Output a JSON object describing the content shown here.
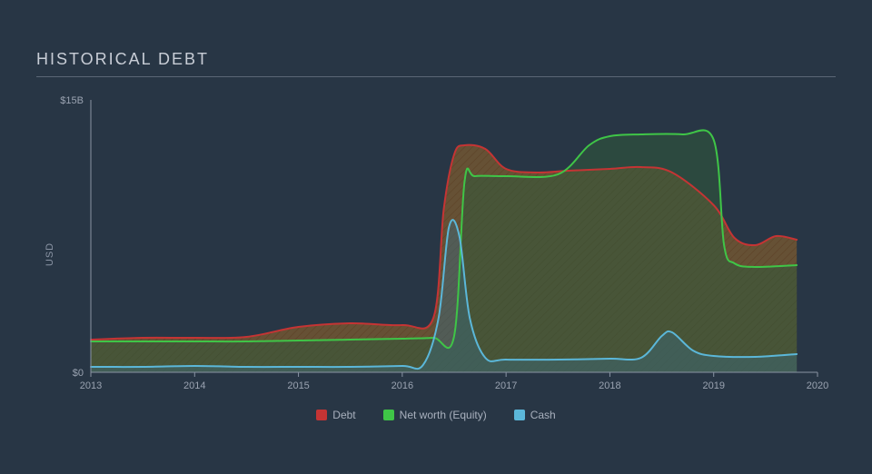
{
  "title": "HISTORICAL DEBT",
  "chart": {
    "type": "area",
    "background_color": "#283645",
    "grid_color": "#3a4756",
    "axis_color": "#8a94a4",
    "tick_font_size": 11,
    "tick_color": "#9aa3b1",
    "title_font_size": 18,
    "title_color": "#c8cdd6",
    "title_letter_spacing": 2,
    "ylabel": "USD",
    "ylabel_font_size": 11,
    "ylabel_color": "#8a94a4",
    "x_ticks": [
      2013,
      2014,
      2015,
      2016,
      2017,
      2018,
      2019,
      2020
    ],
    "xlim": [
      2013,
      2020
    ],
    "y_ticks": [
      {
        "v": 0,
        "label": "$0"
      },
      {
        "v": 15,
        "label": "$15B"
      }
    ],
    "ylim": [
      0,
      15
    ],
    "series": [
      {
        "name": "Debt",
        "legend_label": "Debt",
        "stroke": "#c53434",
        "fill": "#7a5930",
        "fill_opacity": 0.75,
        "stroke_width": 2,
        "hatch": true,
        "hatch_color": "#5c4226",
        "points": [
          [
            2013,
            1.8
          ],
          [
            2013.5,
            1.9
          ],
          [
            2014,
            1.9
          ],
          [
            2014.5,
            1.95
          ],
          [
            2015,
            2.5
          ],
          [
            2015.5,
            2.7
          ],
          [
            2016,
            2.6
          ],
          [
            2016.3,
            3.0
          ],
          [
            2016.4,
            9.0
          ],
          [
            2016.5,
            12.0
          ],
          [
            2016.6,
            12.5
          ],
          [
            2016.8,
            12.3
          ],
          [
            2017,
            11.2
          ],
          [
            2017.3,
            11.0
          ],
          [
            2017.6,
            11.1
          ],
          [
            2018,
            11.2
          ],
          [
            2018.3,
            11.3
          ],
          [
            2018.6,
            11.0
          ],
          [
            2019,
            9.2
          ],
          [
            2019.2,
            7.4
          ],
          [
            2019.4,
            7.0
          ],
          [
            2019.6,
            7.5
          ],
          [
            2019.8,
            7.3
          ]
        ]
      },
      {
        "name": "Net worth (Equity)",
        "legend_label": "Net worth (Equity)",
        "stroke": "#3fc547",
        "fill": "#2f5a3a",
        "fill_opacity": 0.55,
        "stroke_width": 2,
        "hatch": false,
        "points": [
          [
            2013,
            1.7
          ],
          [
            2013.5,
            1.7
          ],
          [
            2014,
            1.7
          ],
          [
            2014.5,
            1.7
          ],
          [
            2015,
            1.75
          ],
          [
            2015.5,
            1.8
          ],
          [
            2016,
            1.85
          ],
          [
            2016.3,
            1.9
          ],
          [
            2016.5,
            2.0
          ],
          [
            2016.6,
            10.5
          ],
          [
            2016.7,
            10.8
          ],
          [
            2017,
            10.8
          ],
          [
            2017.5,
            10.9
          ],
          [
            2017.8,
            12.5
          ],
          [
            2018,
            13.0
          ],
          [
            2018.3,
            13.1
          ],
          [
            2018.7,
            13.1
          ],
          [
            2019,
            12.8
          ],
          [
            2019.1,
            7.0
          ],
          [
            2019.2,
            6.0
          ],
          [
            2019.4,
            5.8
          ],
          [
            2019.8,
            5.9
          ]
        ]
      },
      {
        "name": "Cash",
        "legend_label": "Cash",
        "stroke": "#5bb7d9",
        "fill": "#3a6a7f",
        "fill_opacity": 0.45,
        "stroke_width": 2,
        "hatch": false,
        "points": [
          [
            2013,
            0.3
          ],
          [
            2013.5,
            0.3
          ],
          [
            2014,
            0.35
          ],
          [
            2014.5,
            0.3
          ],
          [
            2015,
            0.3
          ],
          [
            2015.5,
            0.3
          ],
          [
            2016,
            0.35
          ],
          [
            2016.2,
            0.4
          ],
          [
            2016.35,
            3.0
          ],
          [
            2016.45,
            8.0
          ],
          [
            2016.55,
            7.5
          ],
          [
            2016.65,
            3.0
          ],
          [
            2016.8,
            0.8
          ],
          [
            2017,
            0.7
          ],
          [
            2017.5,
            0.7
          ],
          [
            2018,
            0.75
          ],
          [
            2018.3,
            0.8
          ],
          [
            2018.5,
            2.0
          ],
          [
            2018.6,
            2.2
          ],
          [
            2018.8,
            1.2
          ],
          [
            2019,
            0.9
          ],
          [
            2019.4,
            0.85
          ],
          [
            2019.8,
            1.0
          ]
        ]
      }
    ],
    "legend_font_size": 12,
    "legend_color": "#a8b0bd",
    "legend_swatches": {
      "Debt": "#c53434",
      "Net worth (Equity)": "#3fc547",
      "Cash": "#5bb7d9"
    }
  }
}
